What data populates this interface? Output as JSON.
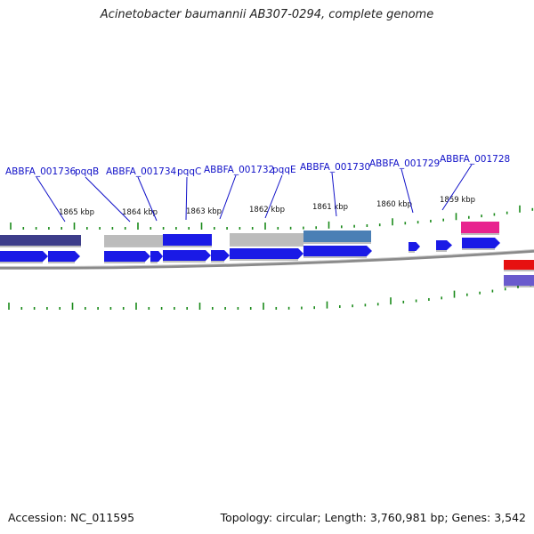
{
  "title": "Acinetobacter baumannii AB307-0294, complete genome",
  "footer": {
    "accession": "Accession: NC_011595",
    "summary": "Topology: circular; Length: 3,760,981 bp; Genes: 3,542"
  },
  "gene_labels": [
    {
      "id": "ABBFA_001736",
      "text": "ABBFA_001736"
    },
    {
      "id": "pqqB",
      "text": "pqqB"
    },
    {
      "id": "ABBFA_001734",
      "text": "ABBFA_001734"
    },
    {
      "id": "pqqC",
      "text": "pqqC"
    },
    {
      "id": "ABBFA_001732",
      "text": "ABBFA_001732"
    },
    {
      "id": "pqqE",
      "text": "pqqE"
    },
    {
      "id": "ABBFA_001730",
      "text": "ABBFA_001730"
    },
    {
      "id": "ABBFA_001729",
      "text": "ABBFA_001729"
    },
    {
      "id": "ABBFA_001728",
      "text": "ABBFA_001728"
    }
  ],
  "scale_ticks": [
    "1865 kbp",
    "1864 kbp",
    "1863 kbp",
    "1862 kbp",
    "1861 kbp",
    "1860 kbp",
    "1859 kbp"
  ],
  "colors": {
    "gene_blue": "#1a1ae6",
    "gene_dark_blue": "#2a2aa8",
    "gene_navy": "#3d3d8a",
    "gene_grey": "#bcbcbc",
    "gene_steel": "#4a7fb5",
    "gene_pink": "#e8238f",
    "gene_red": "#e61010",
    "gene_purple": "#6a5acd",
    "label_blue": "#1010c8",
    "tick_green": "#1a8a1a",
    "backbone": "#8a8a8a"
  }
}
